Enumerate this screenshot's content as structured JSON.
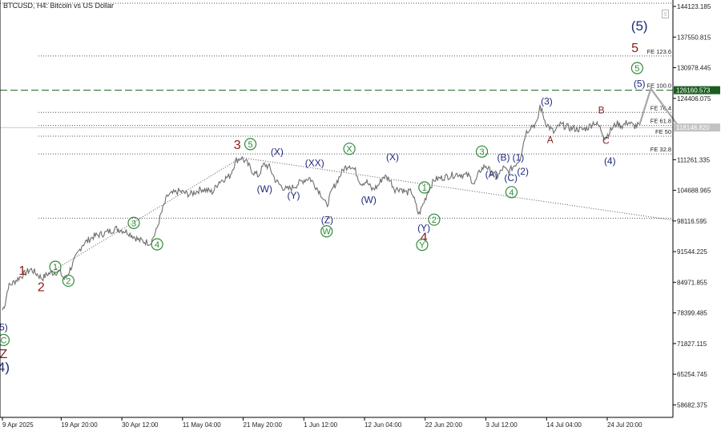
{
  "chart_title": "BTCUSD, H4:  Bitcoin vs US Dollar",
  "chart_data": {
    "type": "line",
    "symbol": "BTCUSD",
    "timeframe": "H4",
    "description": "Bitcoin vs US Dollar",
    "ylim": [
      56000,
      145500
    ],
    "y_ticks": [
      {
        "value": 144123.185,
        "label": "144123.185"
      },
      {
        "value": 137550.815,
        "label": "137550.815"
      },
      {
        "value": 130978.445,
        "label": "130978.445"
      },
      {
        "value": 124406.075,
        "label": "124406.075"
      },
      {
        "value": 111261.335,
        "label": "111261.335"
      },
      {
        "value": 104688.965,
        "label": "104688.965"
      },
      {
        "value": 98116.595,
        "label": "98116.595"
      },
      {
        "value": 91544.225,
        "label": "91544.225"
      },
      {
        "value": 84971.855,
        "label": "84971.855"
      },
      {
        "value": 78399.485,
        "label": "78399.485"
      },
      {
        "value": 71827.115,
        "label": "71827.115"
      },
      {
        "value": 65254.745,
        "label": "65254.745"
      },
      {
        "value": 58682.375,
        "label": "58682.375"
      }
    ],
    "x_ticks": [
      {
        "t": 0,
        "label": "9 Apr 2025"
      },
      {
        "t": 10.33,
        "label": "19 Apr 20:00"
      },
      {
        "t": 21.0,
        "label": "30 Apr 12:00"
      },
      {
        "t": 31.67,
        "label": "11 May 04:00"
      },
      {
        "t": 42.33,
        "label": "21 May 20:00"
      },
      {
        "t": 53.0,
        "label": "1 Jun 12:00"
      },
      {
        "t": 63.67,
        "label": "12 Jun 04:00"
      },
      {
        "t": 74.33,
        "label": "22 Jun 20:00"
      },
      {
        "t": 85.0,
        "label": "3 Jul 12:00"
      },
      {
        "t": 95.67,
        "label": "14 Jul 04:00"
      },
      {
        "t": 106.33,
        "label": "24 Jul 20:00"
      }
    ],
    "price_path": [
      [
        0,
        79000
      ],
      [
        0.5,
        80500
      ],
      [
        1,
        84000
      ],
      [
        3,
        86000
      ],
      [
        5,
        87800
      ],
      [
        7,
        85800
      ],
      [
        8,
        86800
      ],
      [
        10,
        87300
      ],
      [
        11,
        85500
      ],
      [
        13,
        90500
      ],
      [
        14,
        93000
      ],
      [
        16,
        94800
      ],
      [
        18,
        95500
      ],
      [
        20,
        96500
      ],
      [
        22,
        95800
      ],
      [
        24,
        94000
      ],
      [
        26,
        93400
      ],
      [
        27,
        95800
      ],
      [
        28,
        100000
      ],
      [
        29,
        103500
      ],
      [
        31,
        104500
      ],
      [
        33,
        103800
      ],
      [
        35,
        105000
      ],
      [
        37,
        104300
      ],
      [
        38,
        106500
      ],
      [
        40,
        107800
      ],
      [
        41,
        111000
      ],
      [
        42,
        111700
      ],
      [
        43,
        110500
      ],
      [
        44,
        108700
      ],
      [
        45,
        107800
      ],
      [
        46,
        110300
      ],
      [
        47,
        109600
      ],
      [
        48,
        106800
      ],
      [
        49,
        105600
      ],
      [
        50,
        104800
      ],
      [
        51,
        105300
      ],
      [
        53,
        106900
      ],
      [
        54,
        107400
      ],
      [
        56,
        104000
      ],
      [
        57,
        101300
      ],
      [
        58,
        104800
      ],
      [
        59,
        107000
      ],
      [
        60,
        109300
      ],
      [
        61,
        110200
      ],
      [
        62,
        109000
      ],
      [
        63,
        106200
      ],
      [
        64,
        106600
      ],
      [
        65,
        104800
      ],
      [
        66,
        105600
      ],
      [
        67,
        107700
      ],
      [
        68,
        107200
      ],
      [
        69,
        104900
      ],
      [
        70,
        105100
      ],
      [
        71,
        104200
      ],
      [
        72,
        104400
      ],
      [
        72.8,
        101000
      ],
      [
        73.2,
        99400
      ],
      [
        74,
        101800
      ],
      [
        75,
        105000
      ],
      [
        76,
        107000
      ],
      [
        78,
        107600
      ],
      [
        80,
        108200
      ],
      [
        82,
        107800
      ],
      [
        83,
        106000
      ],
      [
        84,
        109000
      ],
      [
        85,
        110000
      ],
      [
        86,
        108400
      ],
      [
        87,
        107400
      ],
      [
        88,
        109500
      ],
      [
        89,
        108600
      ],
      [
        90,
        110000
      ],
      [
        91,
        111500
      ],
      [
        92,
        117000
      ],
      [
        93,
        118500
      ],
      [
        94,
        119000
      ],
      [
        94.5,
        122900
      ],
      [
        95.5,
        119200
      ],
      [
        97,
        117000
      ],
      [
        98,
        118800
      ],
      [
        100,
        118000
      ],
      [
        102,
        117700
      ],
      [
        103,
        118200
      ],
      [
        104,
        119300
      ],
      [
        105,
        118300
      ],
      [
        106,
        115800
      ],
      [
        107,
        117700
      ],
      [
        108,
        119000
      ],
      [
        109,
        118500
      ],
      [
        110,
        119400
      ],
      [
        111,
        118400
      ],
      [
        112,
        118700
      ]
    ],
    "projection": [
      [
        112,
        118700
      ],
      [
        114,
        126500
      ],
      [
        119,
        118200
      ]
    ],
    "levels": [
      {
        "label": "FE 123.6",
        "value": 133500
      },
      {
        "label": "FE 100.0",
        "value": 126160
      },
      {
        "label": "FE 76.4",
        "value": 121400
      },
      {
        "label": "FE 61.8",
        "value": 118600
      },
      {
        "label": "FE 50",
        "value": 116300
      },
      {
        "label": "FE 32.8",
        "value": 112500
      },
      {
        "label": "",
        "value": 98700
      }
    ],
    "price_tags": [
      {
        "label": "126160.573",
        "value": 126160.573,
        "color": "#1b5e20"
      },
      {
        "label": "118148.820",
        "value": 118148.82,
        "color": "#c2c2c2"
      }
    ],
    "trendlines": [
      {
        "from": [
          8,
          86800
        ],
        "to": [
          42,
          111700
        ]
      },
      {
        "from": [
          42,
          111700
        ],
        "to": [
          123,
          98300
        ]
      }
    ],
    "wave_labels": [
      {
        "text": "1",
        "t": 3.5,
        "v": 87500,
        "color": "#8b1a1a",
        "style": "bold"
      },
      {
        "text": "2",
        "t": 6.8,
        "v": 84000,
        "color": "#8b1a1a",
        "style": "bold"
      },
      {
        "text": "3",
        "t": 41.3,
        "v": 114500,
        "color": "#8b1a1a",
        "style": "bold"
      },
      {
        "text": "4",
        "t": 74.1,
        "v": 94700,
        "color": "#8b1a1a",
        "style": "bold"
      },
      {
        "text": "5",
        "t": 111.2,
        "v": 135300,
        "color": "#8b1a1a",
        "style": "bold"
      },
      {
        "text": "Z",
        "t": 0.2,
        "v": 69700,
        "color": "#8b1a1a",
        "style": "bold"
      },
      {
        "text": "A",
        "t": 96.3,
        "v": 115600,
        "color": "#8b1a1a",
        "style": "plain"
      },
      {
        "text": "B",
        "t": 105.3,
        "v": 121900,
        "color": "#8b1a1a",
        "style": "plain"
      },
      {
        "text": "C",
        "t": 106.1,
        "v": 115400,
        "color": "#8b1a1a",
        "style": "plain"
      },
      {
        "text": "1",
        "t": 9.3,
        "v": 88300,
        "color": "#2e8b3a",
        "style": "circle"
      },
      {
        "text": "2",
        "t": 11.6,
        "v": 85300,
        "color": "#2e8b3a",
        "style": "circle"
      },
      {
        "text": "3",
        "t": 23.1,
        "v": 97700,
        "color": "#2e8b3a",
        "style": "circle"
      },
      {
        "text": "4",
        "t": 27.2,
        "v": 93100,
        "color": "#2e8b3a",
        "style": "circle"
      },
      {
        "text": "5",
        "t": 43.6,
        "v": 114600,
        "color": "#2e8b3a",
        "style": "circle"
      },
      {
        "text": "X",
        "t": 61.0,
        "v": 113600,
        "color": "#2e8b3a",
        "style": "circle"
      },
      {
        "text": "W",
        "t": 57.0,
        "v": 95900,
        "color": "#2e8b3a",
        "style": "circle"
      },
      {
        "text": "Y",
        "t": 73.8,
        "v": 93000,
        "color": "#2e8b3a",
        "style": "circle"
      },
      {
        "text": "1",
        "t": 74.2,
        "v": 105300,
        "color": "#2e8b3a",
        "style": "circle"
      },
      {
        "text": "2",
        "t": 75.9,
        "v": 98400,
        "color": "#2e8b3a",
        "style": "circle"
      },
      {
        "text": "3",
        "t": 84.3,
        "v": 113000,
        "color": "#2e8b3a",
        "style": "circle"
      },
      {
        "text": "4",
        "t": 89.5,
        "v": 104300,
        "color": "#2e8b3a",
        "style": "circle"
      },
      {
        "text": "5",
        "t": 111.6,
        "v": 130900,
        "color": "#2e8b3a",
        "style": "circle"
      },
      {
        "text": "C",
        "t": 0.2,
        "v": 72600,
        "color": "#2e8b3a",
        "style": "circle"
      },
      {
        "text": "(X)",
        "t": 48.3,
        "v": 113000,
        "color": "#1f2a7a",
        "style": "plain"
      },
      {
        "text": "(W)",
        "t": 46.1,
        "v": 105000,
        "color": "#1f2a7a",
        "style": "plain"
      },
      {
        "text": "(XX)",
        "t": 54.9,
        "v": 110600,
        "color": "#1f2a7a",
        "style": "plain"
      },
      {
        "text": "(Y)",
        "t": 51.2,
        "v": 103600,
        "color": "#1f2a7a",
        "style": "plain"
      },
      {
        "text": "(Z)",
        "t": 57.1,
        "v": 98400,
        "color": "#1f2a7a",
        "style": "plain"
      },
      {
        "text": "(W)",
        "t": 64.4,
        "v": 102700,
        "color": "#1f2a7a",
        "style": "plain"
      },
      {
        "text": "(X)",
        "t": 68.6,
        "v": 111900,
        "color": "#1f2a7a",
        "style": "plain"
      },
      {
        "text": "(Y)",
        "t": 74.1,
        "v": 96700,
        "color": "#1f2a7a",
        "style": "plain"
      },
      {
        "text": "(A)",
        "t": 86.0,
        "v": 108200,
        "color": "#1f2a7a",
        "style": "plain"
      },
      {
        "text": "(B)",
        "t": 88.1,
        "v": 111800,
        "color": "#1f2a7a",
        "style": "plain"
      },
      {
        "text": "(C)",
        "t": 89.4,
        "v": 107400,
        "color": "#1f2a7a",
        "style": "plain"
      },
      {
        "text": "(1)",
        "t": 90.7,
        "v": 111800,
        "color": "#1f2a7a",
        "style": "plain"
      },
      {
        "text": "(2)",
        "t": 91.5,
        "v": 108800,
        "color": "#1f2a7a",
        "style": "plain"
      },
      {
        "text": "(3)",
        "t": 95.7,
        "v": 123800,
        "color": "#1f2a7a",
        "style": "plain"
      },
      {
        "text": "(4)",
        "t": 106.8,
        "v": 111000,
        "color": "#1f2a7a",
        "style": "plain"
      },
      {
        "text": "(5)",
        "t": 112.0,
        "v": 127600,
        "color": "#1f2a7a",
        "style": "plain"
      },
      {
        "text": "(5)",
        "t": 112.0,
        "v": 140000,
        "color": "#1f2a7a",
        "style": "large"
      },
      {
        "text": "5)",
        "t": 0.2,
        "v": 75400,
        "color": "#1f2a7a",
        "style": "plain"
      },
      {
        "text": "4)",
        "t": 0.2,
        "v": 66800,
        "color": "#1f2a7a",
        "style": "large"
      }
    ]
  }
}
